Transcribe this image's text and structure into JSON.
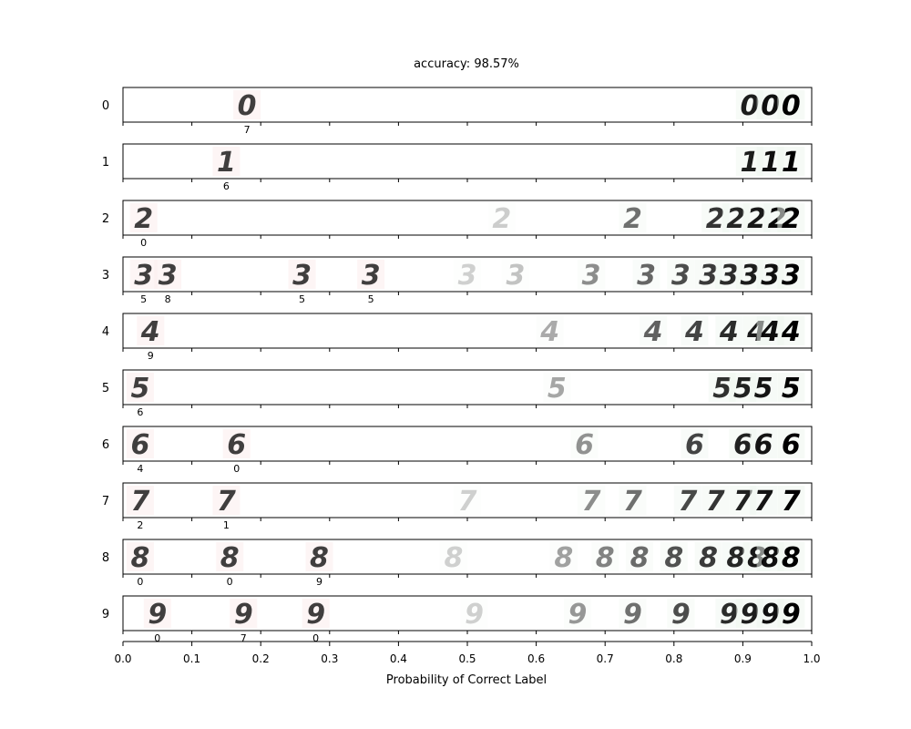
{
  "chart_data": {
    "type": "scatter",
    "title": "accuracy: 98.57%",
    "xlabel": "Probability of Correct Label",
    "xlim": [
      0.0,
      1.0
    ],
    "x_ticks": [
      "0.0",
      "0.1",
      "0.2",
      "0.3",
      "0.4",
      "0.5",
      "0.6",
      "0.7",
      "0.8",
      "0.9",
      "1.0"
    ],
    "correct_color": "#1a7a3a",
    "incorrect_color": "#d48a8a",
    "rows": [
      {
        "label": "0",
        "misclassified": [
          {
            "x": 0.18,
            "digit": "0",
            "predicted": "7"
          }
        ],
        "correct": [
          {
            "x": 0.91,
            "digit": "0"
          },
          {
            "x": 0.94,
            "digit": "0"
          },
          {
            "x": 0.97,
            "digit": "0"
          }
        ]
      },
      {
        "label": "1",
        "misclassified": [
          {
            "x": 0.15,
            "digit": "1",
            "predicted": "6"
          }
        ],
        "correct": [
          {
            "x": 0.91,
            "digit": "1"
          },
          {
            "x": 0.94,
            "digit": "1"
          },
          {
            "x": 0.97,
            "digit": "1"
          }
        ]
      },
      {
        "label": "2",
        "misclassified": [
          {
            "x": 0.03,
            "digit": "2",
            "predicted": "0"
          }
        ],
        "correct": [
          {
            "x": 0.55,
            "digit": "2"
          },
          {
            "x": 0.74,
            "digit": "2"
          },
          {
            "x": 0.86,
            "digit": "2"
          },
          {
            "x": 0.89,
            "digit": "2"
          },
          {
            "x": 0.92,
            "digit": "2"
          },
          {
            "x": 0.95,
            "digit": "2"
          },
          {
            "x": 0.97,
            "digit": "2"
          }
        ]
      },
      {
        "label": "3",
        "misclassified": [
          {
            "x": 0.03,
            "digit": "3",
            "predicted": "5"
          },
          {
            "x": 0.065,
            "digit": "3",
            "predicted": "8"
          },
          {
            "x": 0.26,
            "digit": "3",
            "predicted": "5"
          },
          {
            "x": 0.36,
            "digit": "3",
            "predicted": "5"
          }
        ],
        "correct": [
          {
            "x": 0.5,
            "digit": "3"
          },
          {
            "x": 0.57,
            "digit": "3"
          },
          {
            "x": 0.68,
            "digit": "3"
          },
          {
            "x": 0.76,
            "digit": "3"
          },
          {
            "x": 0.81,
            "digit": "3"
          },
          {
            "x": 0.85,
            "digit": "3"
          },
          {
            "x": 0.88,
            "digit": "3"
          },
          {
            "x": 0.91,
            "digit": "3"
          },
          {
            "x": 0.94,
            "digit": "3"
          },
          {
            "x": 0.97,
            "digit": "3"
          }
        ]
      },
      {
        "label": "4",
        "misclassified": [
          {
            "x": 0.04,
            "digit": "4",
            "predicted": "9"
          }
        ],
        "correct": [
          {
            "x": 0.62,
            "digit": "4"
          },
          {
            "x": 0.77,
            "digit": "4"
          },
          {
            "x": 0.83,
            "digit": "4"
          },
          {
            "x": 0.88,
            "digit": "4"
          },
          {
            "x": 0.92,
            "digit": "4"
          },
          {
            "x": 0.94,
            "digit": "4"
          },
          {
            "x": 0.97,
            "digit": "4"
          }
        ]
      },
      {
        "label": "5",
        "misclassified": [
          {
            "x": 0.025,
            "digit": "5",
            "predicted": "6"
          }
        ],
        "correct": [
          {
            "x": 0.63,
            "digit": "5"
          },
          {
            "x": 0.87,
            "digit": "5"
          },
          {
            "x": 0.9,
            "digit": "5"
          },
          {
            "x": 0.93,
            "digit": "5"
          },
          {
            "x": 0.97,
            "digit": "5"
          }
        ]
      },
      {
        "label": "6",
        "misclassified": [
          {
            "x": 0.025,
            "digit": "6",
            "predicted": "4"
          },
          {
            "x": 0.165,
            "digit": "6",
            "predicted": "0"
          }
        ],
        "correct": [
          {
            "x": 0.67,
            "digit": "6"
          },
          {
            "x": 0.83,
            "digit": "6"
          },
          {
            "x": 0.9,
            "digit": "6"
          },
          {
            "x": 0.93,
            "digit": "6"
          },
          {
            "x": 0.97,
            "digit": "6"
          }
        ]
      },
      {
        "label": "7",
        "misclassified": [
          {
            "x": 0.025,
            "digit": "7",
            "predicted": "2"
          },
          {
            "x": 0.15,
            "digit": "7",
            "predicted": "1"
          }
        ],
        "correct": [
          {
            "x": 0.5,
            "digit": "7"
          },
          {
            "x": 0.68,
            "digit": "7"
          },
          {
            "x": 0.74,
            "digit": "7"
          },
          {
            "x": 0.82,
            "digit": "7"
          },
          {
            "x": 0.86,
            "digit": "7"
          },
          {
            "x": 0.9,
            "digit": "7"
          },
          {
            "x": 0.93,
            "digit": "7"
          },
          {
            "x": 0.97,
            "digit": "7"
          }
        ]
      },
      {
        "label": "8",
        "misclassified": [
          {
            "x": 0.025,
            "digit": "8",
            "predicted": "0"
          },
          {
            "x": 0.155,
            "digit": "8",
            "predicted": "0"
          },
          {
            "x": 0.285,
            "digit": "8",
            "predicted": "9"
          }
        ],
        "correct": [
          {
            "x": 0.48,
            "digit": "8"
          },
          {
            "x": 0.64,
            "digit": "8"
          },
          {
            "x": 0.7,
            "digit": "8"
          },
          {
            "x": 0.75,
            "digit": "8"
          },
          {
            "x": 0.8,
            "digit": "8"
          },
          {
            "x": 0.85,
            "digit": "8"
          },
          {
            "x": 0.89,
            "digit": "8"
          },
          {
            "x": 0.92,
            "digit": "8"
          },
          {
            "x": 0.94,
            "digit": "8"
          },
          {
            "x": 0.97,
            "digit": "8"
          }
        ]
      },
      {
        "label": "9",
        "misclassified": [
          {
            "x": 0.05,
            "digit": "9",
            "predicted": "0"
          },
          {
            "x": 0.175,
            "digit": "9",
            "predicted": "7"
          },
          {
            "x": 0.28,
            "digit": "9",
            "predicted": "0"
          }
        ],
        "correct": [
          {
            "x": 0.51,
            "digit": "9"
          },
          {
            "x": 0.66,
            "digit": "9"
          },
          {
            "x": 0.74,
            "digit": "9"
          },
          {
            "x": 0.81,
            "digit": "9"
          },
          {
            "x": 0.88,
            "digit": "9"
          },
          {
            "x": 0.91,
            "digit": "9"
          },
          {
            "x": 0.94,
            "digit": "9"
          },
          {
            "x": 0.97,
            "digit": "9"
          }
        ]
      }
    ]
  }
}
